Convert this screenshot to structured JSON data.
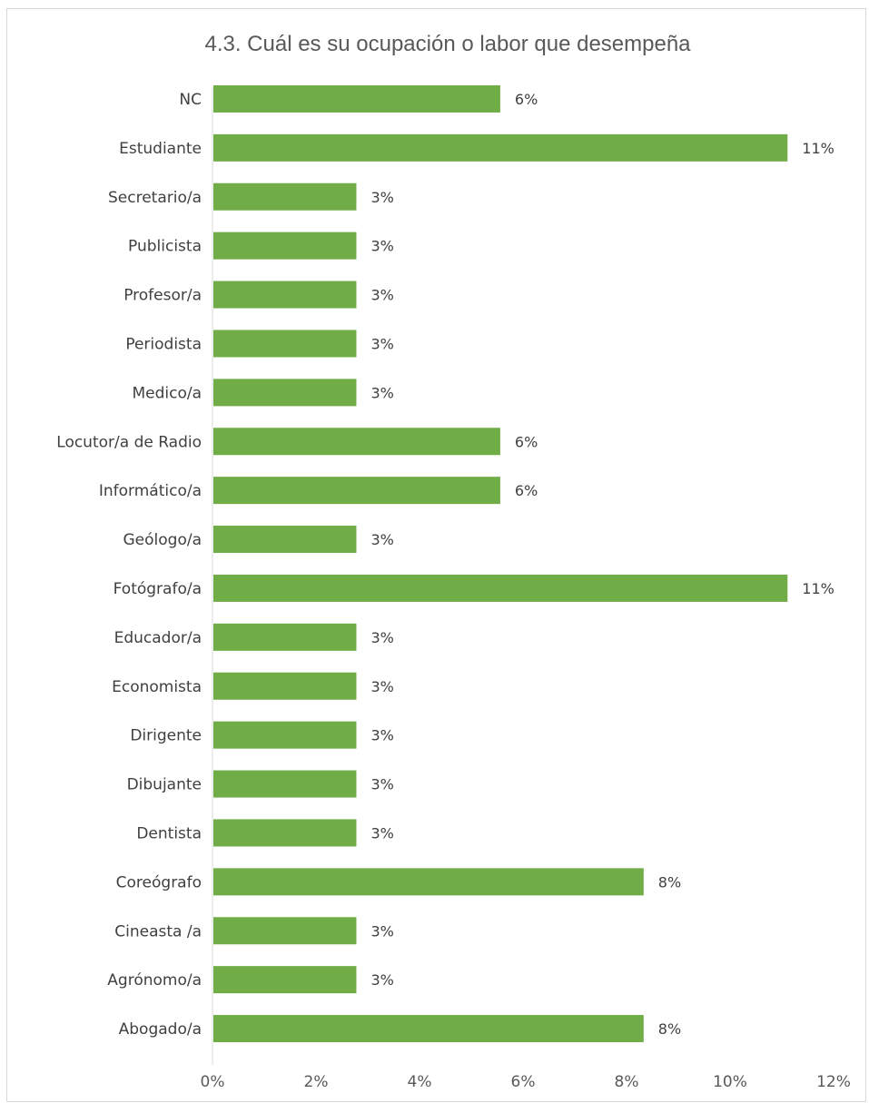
{
  "chart_data": {
    "type": "bar",
    "orientation": "horizontal",
    "title": "4.3. Cuál es su ocupación o labor que desempeña",
    "xlabel": "",
    "ylabel": "",
    "categories": [
      "NC",
      "Estudiante",
      "Secretario/a",
      "Publicista",
      "Profesor/a",
      "Periodista",
      "Medico/a",
      "Locutor/a de Radio",
      "Informático/a",
      "Geólogo/a",
      "Fotógrafo/a",
      "Educador/a",
      "Economista",
      "Dirigente",
      "Dibujante",
      "Dentista",
      "Coreógrafo",
      "Cineasta /a",
      "Agrónomo/a",
      "Abogado/a"
    ],
    "values": [
      5.56,
      11.11,
      2.78,
      2.78,
      2.78,
      2.78,
      2.78,
      5.56,
      5.56,
      2.78,
      11.11,
      2.78,
      2.78,
      2.78,
      2.78,
      2.78,
      8.33,
      2.78,
      2.78,
      8.33
    ],
    "data_labels": [
      "6%",
      "11%",
      "3%",
      "3%",
      "3%",
      "3%",
      "3%",
      "6%",
      "6%",
      "3%",
      "11%",
      "3%",
      "3%",
      "3%",
      "3%",
      "3%",
      "8%",
      "3%",
      "3%",
      "8%"
    ],
    "xlim": [
      0,
      12
    ],
    "x_ticks": [
      "0%",
      "2%",
      "4%",
      "6%",
      "8%",
      "10%",
      "12%"
    ],
    "bar_color": "#70ad47",
    "grid": false,
    "legend": "none"
  }
}
